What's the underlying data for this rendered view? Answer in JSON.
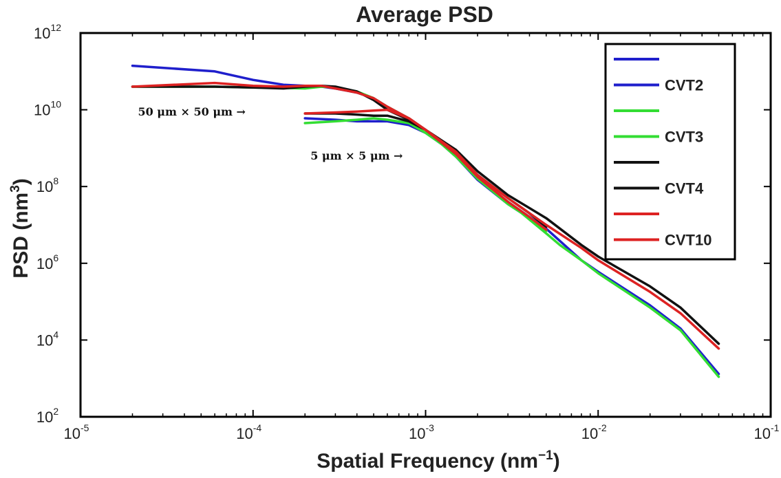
{
  "chart_data": {
    "type": "line",
    "title": "Average PSD",
    "xlabel": "Spatial Frequency (nm",
    "xlabel_sup": "−1",
    "xlabel_end": ")",
    "ylabel": "PSD (nm",
    "ylabel_sup": "3",
    "ylabel_end": ")",
    "x_scale": "log",
    "y_scale": "log",
    "xlim": [
      1e-05,
      0.1
    ],
    "ylim": [
      100,
      1000000000000
    ],
    "x_ticks": [
      {
        "value": 1e-05,
        "base": "10",
        "exp": "-5"
      },
      {
        "value": 0.0001,
        "base": "10",
        "exp": "-4"
      },
      {
        "value": 0.001,
        "base": "10",
        "exp": "-3"
      },
      {
        "value": 0.01,
        "base": "10",
        "exp": "-2"
      },
      {
        "value": 0.1,
        "base": "10",
        "exp": "-1"
      }
    ],
    "y_ticks": [
      {
        "value": 100,
        "base": "10",
        "exp": "2"
      },
      {
        "value": 10000,
        "base": "10",
        "exp": "4"
      },
      {
        "value": 1000000,
        "base": "10",
        "exp": "6"
      },
      {
        "value": 100000000,
        "base": "10",
        "exp": "8"
      },
      {
        "value": 10000000000,
        "base": "10",
        "exp": "10"
      },
      {
        "value": 1000000000000,
        "base": "10",
        "exp": "12"
      }
    ],
    "grid": false,
    "legend_position": "top-right",
    "annotations": [
      {
        "text": "50 μm × 50 μm →",
        "x": 2e-05,
        "y": 7000000000
      },
      {
        "text": "5 μm × 5 μm →",
        "x": 0.0002,
        "y": 500000000
      }
    ],
    "series": [
      {
        "name": "",
        "color": "#1f1fcc",
        "x": [
          2e-05,
          6e-05,
          0.0001,
          0.00015,
          0.0002,
          0.00025,
          0.0003,
          0.0004,
          0.0005,
          0.0006,
          0.0008,
          0.001,
          0.0015,
          0.002,
          0.003,
          0.004,
          0.005
        ],
        "y": [
          140000000000,
          100000000000,
          60000000000,
          45000000000,
          42000000000,
          40000000000,
          36000000000,
          28000000000,
          20000000000,
          12000000000,
          6000000000,
          3000000000,
          600000000,
          150000000,
          35000000,
          15000000,
          7000000
        ]
      },
      {
        "name": "CVT2",
        "color": "#1f1fcc",
        "x": [
          0.0002,
          0.0003,
          0.0004,
          0.0005,
          0.0006,
          0.0008,
          0.001,
          0.0015,
          0.002,
          0.003,
          0.005,
          0.008,
          0.01,
          0.02,
          0.03,
          0.05
        ],
        "y": [
          6000000000,
          5500000000,
          5000000000,
          5000000000,
          5000000000,
          4000000000,
          2500000000,
          700000000,
          160000000,
          40000000,
          8000000,
          1200000,
          600000,
          80000,
          20000,
          1300
        ]
      },
      {
        "name": "",
        "color": "#33dd33",
        "x": [
          2e-05,
          6e-05,
          0.0001,
          0.00015,
          0.0002,
          0.00025,
          0.0003,
          0.0004,
          0.0005,
          0.0006,
          0.0008,
          0.001,
          0.0015,
          0.002,
          0.003,
          0.004,
          0.005
        ],
        "y": [
          40000000000,
          40000000000,
          38000000000,
          37000000000,
          36000000000,
          40000000000,
          38000000000,
          30000000000,
          20000000000,
          12000000000,
          6000000000,
          3000000000,
          600000000,
          160000000,
          35000000,
          15000000,
          7000000
        ]
      },
      {
        "name": "CVT3",
        "color": "#33dd33",
        "x": [
          0.0002,
          0.0003,
          0.0004,
          0.0005,
          0.0006,
          0.0008,
          0.001,
          0.0015,
          0.002,
          0.003,
          0.005,
          0.006,
          0.008,
          0.01,
          0.02,
          0.03,
          0.05
        ],
        "y": [
          4500000000,
          5000000000,
          5500000000,
          6000000000,
          5500000000,
          4500000000,
          2500000000,
          700000000,
          160000000,
          40000000,
          6000000,
          3000000,
          1200000,
          550000,
          70000,
          18000,
          1100
        ]
      },
      {
        "name": "",
        "color": "#111111",
        "x": [
          2e-05,
          6e-05,
          0.0001,
          0.00015,
          0.0002,
          0.00025,
          0.0003,
          0.0004,
          0.0005,
          0.0006,
          0.0008,
          0.001,
          0.0015,
          0.002,
          0.003,
          0.004,
          0.005
        ],
        "y": [
          40000000000,
          40000000000,
          38000000000,
          36000000000,
          40000000000,
          42000000000,
          40000000000,
          30000000000,
          18000000000,
          10000000000,
          5500000000,
          3000000000,
          700000000,
          200000000,
          50000000,
          20000000,
          9000000
        ]
      },
      {
        "name": "CVT4",
        "color": "#111111",
        "x": [
          0.0002,
          0.0003,
          0.0004,
          0.0005,
          0.0006,
          0.0008,
          0.001,
          0.0015,
          0.002,
          0.003,
          0.005,
          0.008,
          0.01,
          0.02,
          0.03,
          0.05
        ],
        "y": [
          8000000000,
          8000000000,
          7500000000,
          7000000000,
          7000000000,
          5000000000,
          3000000000,
          900000000,
          250000000,
          60000000,
          15000000,
          3000000,
          1500000,
          250000,
          70000,
          8000
        ]
      },
      {
        "name": "",
        "color": "#dd2222",
        "x": [
          2e-05,
          6e-05,
          0.0001,
          0.00015,
          0.0002,
          0.00025,
          0.0003,
          0.0004,
          0.0005,
          0.0006,
          0.0008,
          0.001,
          0.0015,
          0.002,
          0.003,
          0.004,
          0.005
        ],
        "y": [
          40000000000,
          50000000000,
          42000000000,
          40000000000,
          42000000000,
          42000000000,
          36000000000,
          28000000000,
          20000000000,
          12000000000,
          6000000000,
          3000000000,
          700000000,
          180000000,
          40000000,
          16000000,
          7500000
        ]
      },
      {
        "name": "CVT10",
        "color": "#dd2222",
        "x": [
          0.0002,
          0.0003,
          0.0004,
          0.0005,
          0.0006,
          0.0008,
          0.001,
          0.0015,
          0.002,
          0.003,
          0.005,
          0.008,
          0.01,
          0.02,
          0.03,
          0.05
        ],
        "y": [
          8000000000,
          8500000000,
          9000000000,
          9500000000,
          10000000000,
          6000000000,
          3000000000,
          800000000,
          200000000,
          50000000,
          10000000,
          2500000,
          1200000,
          180000,
          50000,
          6000
        ]
      }
    ]
  }
}
